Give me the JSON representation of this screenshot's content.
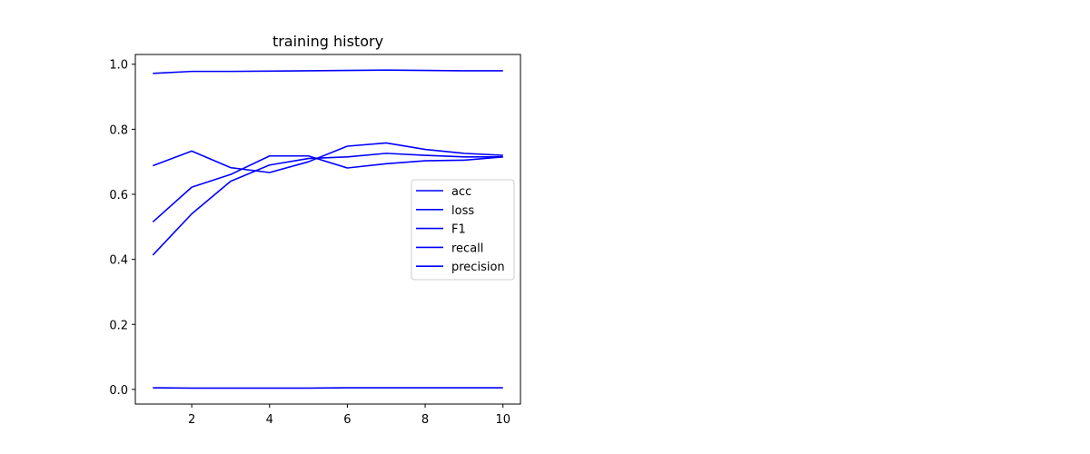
{
  "chart_data": {
    "type": "line",
    "title": "training history",
    "xlabel": "",
    "ylabel": "",
    "x": [
      1,
      2,
      3,
      4,
      5,
      6,
      7,
      8,
      9,
      10
    ],
    "xlim": [
      0.55,
      10.45
    ],
    "ylim": [
      -0.045,
      1.03
    ],
    "xticks": [
      2,
      4,
      6,
      8,
      10
    ],
    "xtick_labels": [
      "2",
      "4",
      "6",
      "8",
      "10"
    ],
    "yticks": [
      0.0,
      0.2,
      0.4,
      0.6,
      0.8,
      1.0
    ],
    "ytick_labels": [
      "0.0",
      "0.2",
      "0.4",
      "0.6",
      "0.8",
      "1.0"
    ],
    "grid": false,
    "legend_position": "center-right",
    "line_color": "#0000ff",
    "series": [
      {
        "name": "acc",
        "values": [
          0.972,
          0.978,
          0.978,
          0.979,
          0.98,
          0.981,
          0.982,
          0.981,
          0.98,
          0.98
        ]
      },
      {
        "name": "loss",
        "values": [
          0.005,
          0.004,
          0.004,
          0.004,
          0.004,
          0.005,
          0.005,
          0.005,
          0.005,
          0.005
        ]
      },
      {
        "name": "F1",
        "values": [
          0.688,
          0.733,
          0.682,
          0.667,
          0.7,
          0.748,
          0.758,
          0.738,
          0.726,
          0.72
        ]
      },
      {
        "name": "recall",
        "values": [
          0.515,
          0.622,
          0.661,
          0.718,
          0.718,
          0.681,
          0.694,
          0.703,
          0.705,
          0.715
        ]
      },
      {
        "name": "precision",
        "values": [
          0.413,
          0.54,
          0.64,
          0.69,
          0.71,
          0.715,
          0.726,
          0.72,
          0.715,
          0.715
        ]
      }
    ]
  }
}
